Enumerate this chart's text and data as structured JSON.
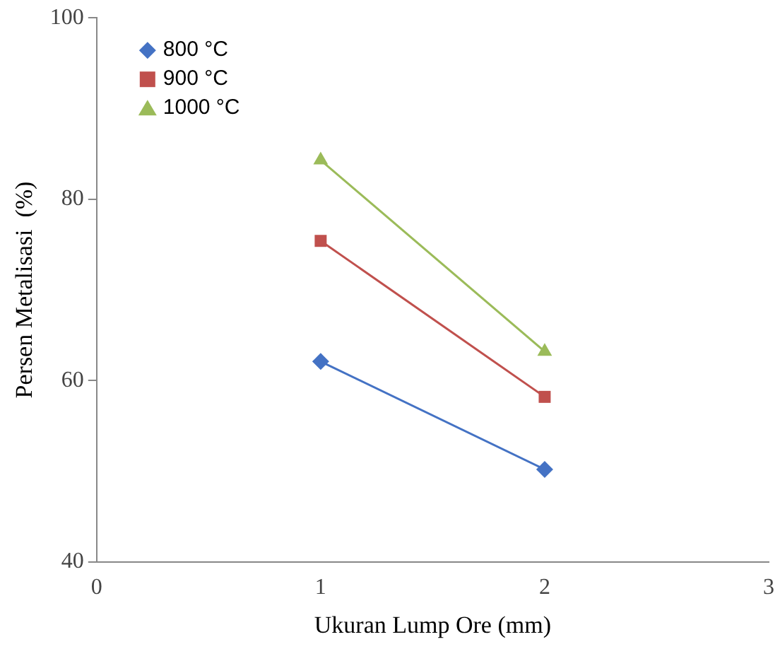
{
  "chart_data": {
    "type": "line",
    "xlabel": "Ukuran Lump Ore (mm)",
    "ylabel": "Persen Metalisasi  (%)",
    "xlim": [
      0,
      3
    ],
    "xticks": [
      0,
      1,
      2,
      3
    ],
    "ylim": [
      40,
      100
    ],
    "yticks": [
      40,
      60,
      80,
      100
    ],
    "grid": false,
    "legend": "top left",
    "x": [
      1,
      2
    ],
    "series": [
      {
        "name": "800 °C",
        "color": "#4472c4",
        "marker": "diamond",
        "values": [
          62.1,
          50.2
        ]
      },
      {
        "name": "900 °C",
        "color": "#c0504d",
        "marker": "square",
        "values": [
          75.4,
          58.2
        ]
      },
      {
        "name": "1000 °C",
        "color": "#9bbb59",
        "marker": "triangle",
        "values": [
          84.3,
          63.2
        ]
      }
    ]
  }
}
